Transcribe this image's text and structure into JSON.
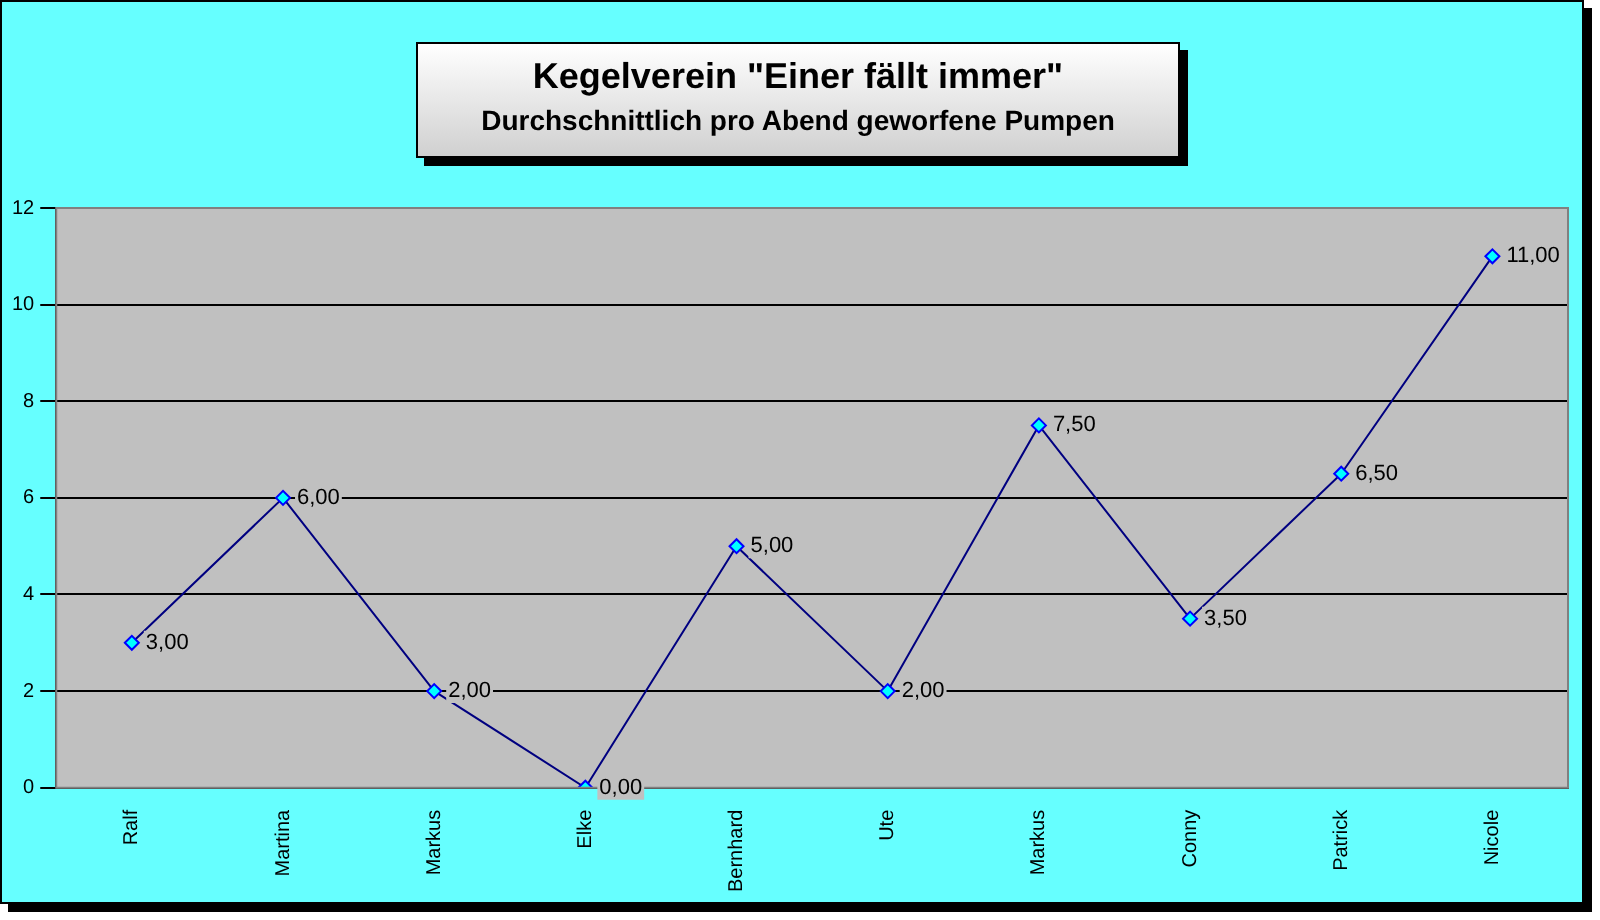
{
  "chart_data": {
    "type": "line",
    "title": "Kegelverein \"Einer fällt immer\"",
    "subtitle": "Durchschnittlich pro Abend geworfene Pumpen",
    "categories": [
      "Ralf",
      "Martina",
      "Markus",
      "Elke",
      "Bernhard",
      "Ute",
      "Markus",
      "Conny",
      "Patrick",
      "Nicole"
    ],
    "series": [
      {
        "color": "#000080",
        "values": [
          3,
          6,
          2,
          0,
          5,
          2,
          7.5,
          3.5,
          6.5,
          11
        ],
        "value_labels": [
          "3,00",
          "6,00",
          "2,00",
          "0,00",
          "5,00",
          "2,00",
          "7,50",
          "3,50",
          "6,50",
          "11,00"
        ]
      }
    ],
    "ylim": [
      0,
      12
    ],
    "yticks": [
      0,
      2,
      4,
      6,
      8,
      10,
      12
    ],
    "grid": "y",
    "legend": false,
    "marker": "diamond",
    "line_style": "solid"
  }
}
